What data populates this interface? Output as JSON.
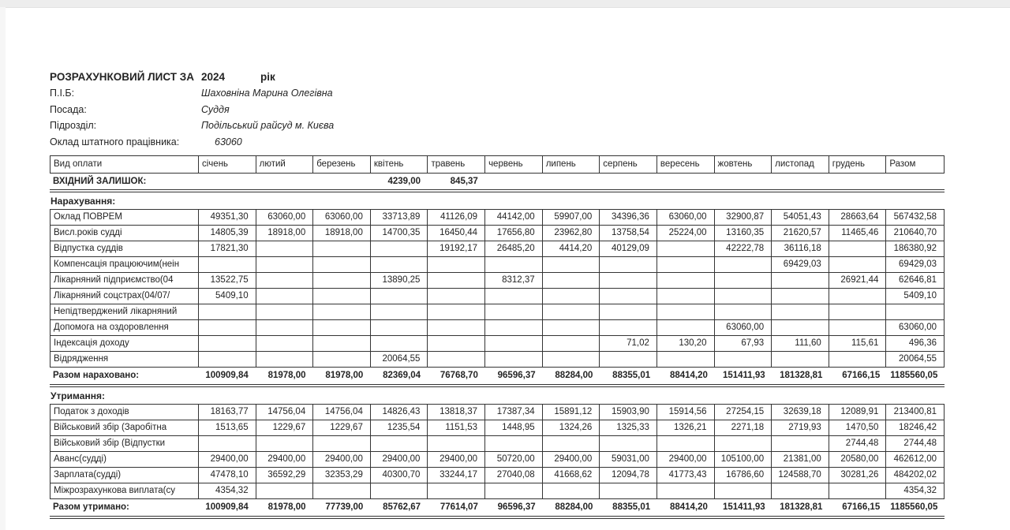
{
  "page": {
    "title_label": "РОЗРАХУНКОВИЙ ЛИСТ ЗА",
    "title_year": "2024",
    "title_suffix": "рік",
    "fields": [
      {
        "label": "П.І.Б:",
        "value": "Шаховніна Марина Олегівна"
      },
      {
        "label": "Посада:",
        "value": "Суддя"
      },
      {
        "label": "Підрозділ:",
        "value": "Подільський райсуд м. Києва"
      },
      {
        "label": "Оклад штатного працівника:",
        "value": "63060"
      }
    ]
  },
  "colors": {
    "ink": "#242424",
    "line": "#343434",
    "scan_edge": "#ededed"
  },
  "table": {
    "columns": [
      "Вид оплати",
      "січень",
      "лютий",
      "березень",
      "квітень",
      "травень",
      "червень",
      "липень",
      "серпень",
      "вересень",
      "жовтень",
      "листопад",
      "грудень",
      "Разом"
    ],
    "opening_balance": {
      "label": "ВХІДНИЙ ЗАЛИШОК:",
      "values": [
        "",
        "",
        "",
        "4239,00",
        "845,37",
        "",
        "",
        "",
        "",
        "",
        "",
        "",
        ""
      ]
    },
    "sections": [
      {
        "title": "Нарахування:",
        "rows": [
          {
            "label": "Оклад ПОВРЕМ",
            "values": [
              "49351,30",
              "63060,00",
              "63060,00",
              "33713,89",
              "41126,09",
              "44142,00",
              "59907,00",
              "34396,36",
              "63060,00",
              "32900,87",
              "54051,43",
              "28663,64",
              "567432,58"
            ]
          },
          {
            "label": "Висл.років судді",
            "values": [
              "14805,39",
              "18918,00",
              "18918,00",
              "14700,35",
              "16450,44",
              "17656,80",
              "23962,80",
              "13758,54",
              "25224,00",
              "13160,35",
              "21620,57",
              "11465,46",
              "210640,70"
            ]
          },
          {
            "label": "Відпустка суддів",
            "values": [
              "17821,30",
              "",
              "",
              "",
              "19192,17",
              "26485,20",
              "4414,20",
              "40129,09",
              "",
              "42222,78",
              "36116,18",
              "",
              "186380,92"
            ]
          },
          {
            "label": "Компенсація працюючим(неін",
            "values": [
              "",
              "",
              "",
              "",
              "",
              "",
              "",
              "",
              "",
              "",
              "69429,03",
              "",
              "69429,03"
            ]
          },
          {
            "label": "Лікарняний підприємство(04",
            "values": [
              "13522,75",
              "",
              "",
              "13890,25",
              "",
              "8312,37",
              "",
              "",
              "",
              "",
              "",
              "26921,44",
              "62646,81"
            ]
          },
          {
            "label": "Лікарняний соцстрах(04/07/",
            "values": [
              "5409,10",
              "",
              "",
              "",
              "",
              "",
              "",
              "",
              "",
              "",
              "",
              "",
              "5409,10"
            ]
          },
          {
            "label": "Непідтверджений лікарняний",
            "values": [
              "",
              "",
              "",
              "",
              "",
              "",
              "",
              "",
              "",
              "",
              "",
              "",
              ""
            ]
          },
          {
            "label": "Допомога на оздоровлення",
            "values": [
              "",
              "",
              "",
              "",
              "",
              "",
              "",
              "",
              "",
              "63060,00",
              "",
              "",
              "63060,00"
            ]
          },
          {
            "label": "Індексація доходу",
            "values": [
              "",
              "",
              "",
              "",
              "",
              "",
              "",
              "71,02",
              "130,20",
              "67,93",
              "111,60",
              "115,61",
              "496,36"
            ]
          },
          {
            "label": "Відрядження",
            "values": [
              "",
              "",
              "",
              "20064,55",
              "",
              "",
              "",
              "",
              "",
              "",
              "",
              "",
              "20064,55"
            ]
          }
        ],
        "total": {
          "label": "Разом нараховано:",
          "values": [
            "100909,84",
            "81978,00",
            "81978,00",
            "82369,04",
            "76768,70",
            "96596,37",
            "88284,00",
            "88355,01",
            "88414,20",
            "151411,93",
            "181328,81",
            "67166,15",
            "1185560,05"
          ]
        }
      },
      {
        "title": "Утримання:",
        "rows": [
          {
            "label": "Податок з доходів",
            "values": [
              "18163,77",
              "14756,04",
              "14756,04",
              "14826,43",
              "13818,37",
              "17387,34",
              "15891,12",
              "15903,90",
              "15914,56",
              "27254,15",
              "32639,18",
              "12089,91",
              "213400,81"
            ]
          },
          {
            "label": "Військовий збір (Заробітна",
            "values": [
              "1513,65",
              "1229,67",
              "1229,67",
              "1235,54",
              "1151,53",
              "1448,95",
              "1324,26",
              "1325,33",
              "1326,21",
              "2271,18",
              "2719,93",
              "1470,50",
              "18246,42"
            ]
          },
          {
            "label": "Військовий збір (Відпустки",
            "values": [
              "",
              "",
              "",
              "",
              "",
              "",
              "",
              "",
              "",
              "",
              "",
              "2744,48",
              "2744,48"
            ]
          },
          {
            "label": "Аванс(судді)",
            "values": [
              "29400,00",
              "29400,00",
              "29400,00",
              "29400,00",
              "29400,00",
              "50720,00",
              "29400,00",
              "59031,00",
              "29400,00",
              "105100,00",
              "21381,00",
              "20580,00",
              "462612,00"
            ]
          },
          {
            "label": "Зарплата(судді)",
            "values": [
              "47478,10",
              "36592,29",
              "32353,29",
              "40300,70",
              "33244,17",
              "27040,08",
              "41668,62",
              "12094,78",
              "41773,43",
              "16786,60",
              "124588,70",
              "30281,26",
              "484202,02"
            ]
          },
          {
            "label": "Міжрозрахункова виплата(су",
            "values": [
              "4354,32",
              "",
              "",
              "",
              "",
              "",
              "",
              "",
              "",
              "",
              "",
              "",
              "4354,32"
            ]
          }
        ],
        "total": {
          "label": "Разом утримано:",
          "values": [
            "100909,84",
            "81978,00",
            "77739,00",
            "85762,67",
            "77614,07",
            "96596,37",
            "88284,00",
            "88355,01",
            "88414,20",
            "151411,93",
            "181328,81",
            "67166,15",
            "1185560,05"
          ]
        }
      }
    ]
  }
}
